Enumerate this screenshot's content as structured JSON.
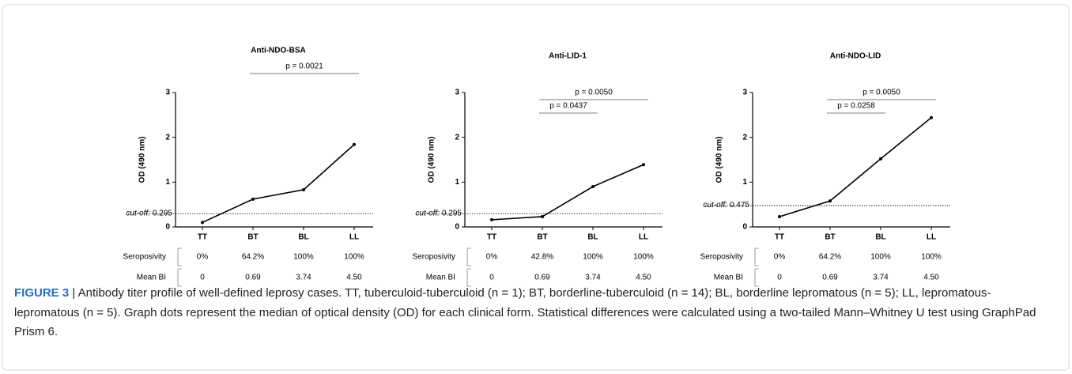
{
  "chart_data": [
    {
      "type": "line",
      "title": "Anti-NDO-BSA",
      "y_label": "OD (490 nm)",
      "categories": [
        "TT",
        "BT",
        "BL",
        "LL"
      ],
      "values": [
        0.1,
        0.62,
        0.83,
        1.84
      ],
      "color": "#000000",
      "ylim": [
        0,
        3
      ],
      "yticks": [
        0,
        1,
        2,
        3
      ],
      "cutoff_label": "cut-off:",
      "cutoff": 0.295,
      "comparisons": [
        {
          "between": [
            "BT",
            "LL"
          ],
          "label": "p = 0.0021"
        }
      ],
      "table": {
        "rows": [
          {
            "label": "Seroposivity",
            "cells": [
              "0%",
              "64.2%",
              "100%",
              "100%"
            ]
          },
          {
            "label": "Mean BI",
            "cells": [
              "0",
              "0.69",
              "3.74",
              "4.50"
            ]
          }
        ]
      }
    },
    {
      "type": "line",
      "title": "Anti-LID-1",
      "y_label": "OD (490 nm)",
      "categories": [
        "TT",
        "BT",
        "BL",
        "LL"
      ],
      "values": [
        0.16,
        0.23,
        0.9,
        1.39
      ],
      "color": "#000000",
      "ylim": [
        0,
        3
      ],
      "yticks": [
        0,
        1,
        2,
        3
      ],
      "cutoff_label": "cut-off:",
      "cutoff": 0.295,
      "comparisons": [
        {
          "between": [
            "BT",
            "LL"
          ],
          "label": "p = 0.0050"
        },
        {
          "between": [
            "BT",
            "BL"
          ],
          "label": "p = 0.0437"
        }
      ],
      "table": {
        "rows": [
          {
            "label": "Seroposivity",
            "cells": [
              "0%",
              "42.8%",
              "100%",
              "100%"
            ]
          },
          {
            "label": "Mean BI",
            "cells": [
              "0",
              "0.69",
              "3.74",
              "4.50"
            ]
          }
        ]
      }
    },
    {
      "type": "line",
      "title": "Anti-NDO-LID",
      "y_label": "OD (490 nm)",
      "categories": [
        "TT",
        "BT",
        "BL",
        "LL"
      ],
      "values": [
        0.23,
        0.58,
        1.52,
        2.44
      ],
      "color": "#000000",
      "ylim": [
        0,
        3
      ],
      "yticks": [
        0,
        1,
        2,
        3
      ],
      "cutoff_label": "cut-off:",
      "cutoff": 0.475,
      "comparisons": [
        {
          "between": [
            "BT",
            "LL"
          ],
          "label": "p = 0.0050"
        },
        {
          "between": [
            "BT",
            "BL"
          ],
          "label": "p = 0.0258"
        }
      ],
      "table": {
        "rows": [
          {
            "label": "Seroposivity",
            "cells": [
              "0%",
              "64.2%",
              "100%",
              "100%"
            ]
          },
          {
            "label": "Mean BI",
            "cells": [
              "0",
              "0.69",
              "3.74",
              "4.50"
            ]
          }
        ]
      }
    }
  ],
  "caption": {
    "label": "FIGURE 3",
    "text": "| Antibody titer profile of well-defined leprosy cases. TT, tuberculoid-tuberculoid (n = 1); BT, borderline-tuberculoid (n = 14); BL, borderline lepromatous (n = 5); LL, lepromatous-lepromatous (n = 5). Graph dots represent the median of optical density (OD) for each clinical form. Statistical differences were calculated using a two-tailed Mann–Whitney U test using GraphPad Prism 6."
  }
}
